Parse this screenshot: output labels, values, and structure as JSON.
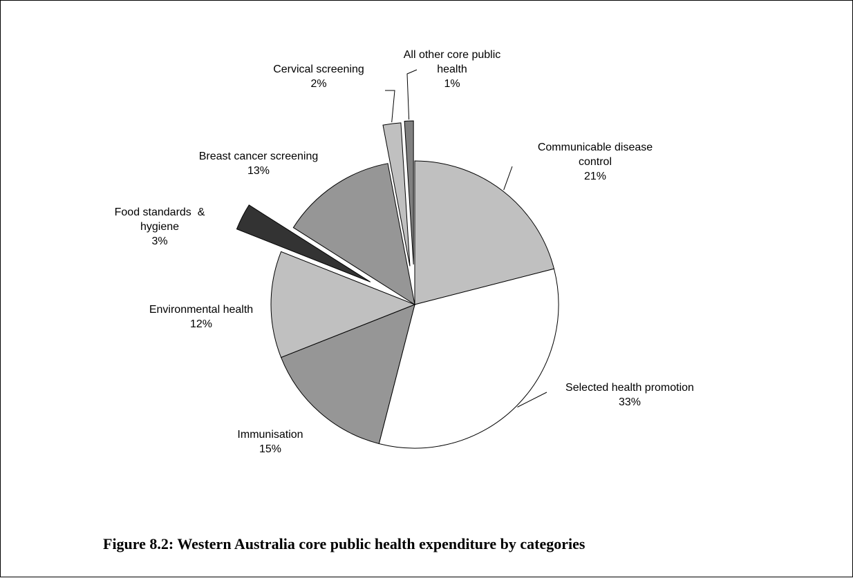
{
  "chart_data": {
    "type": "pie",
    "categories": [
      "Communicable disease control",
      "Selected health promotion",
      "Immunisation",
      "Environmental health",
      "Food standards  & hygiene",
      "Breast cancer screening",
      "Cervical screening",
      "All other core public health"
    ],
    "values": [
      21,
      33,
      15,
      12,
      3,
      13,
      2,
      1
    ],
    "value_labels": [
      "21%",
      "33%",
      "15%",
      "12%",
      "3%",
      "13%",
      "2%",
      "1%"
    ],
    "colors": [
      "#c0c0c0",
      "#ffffff",
      "#969696",
      "#c0c0c0",
      "#333333",
      "#969696",
      "#c0c0c0",
      "#808080"
    ],
    "exploded": [
      false,
      false,
      false,
      false,
      true,
      false,
      true,
      true
    ],
    "start": "12 o'clock, clockwise",
    "legend": "none (direct labels with leader lines)"
  },
  "figure": {
    "caption": "Figure 8.2: Western Australia core public health expenditure by categories"
  }
}
